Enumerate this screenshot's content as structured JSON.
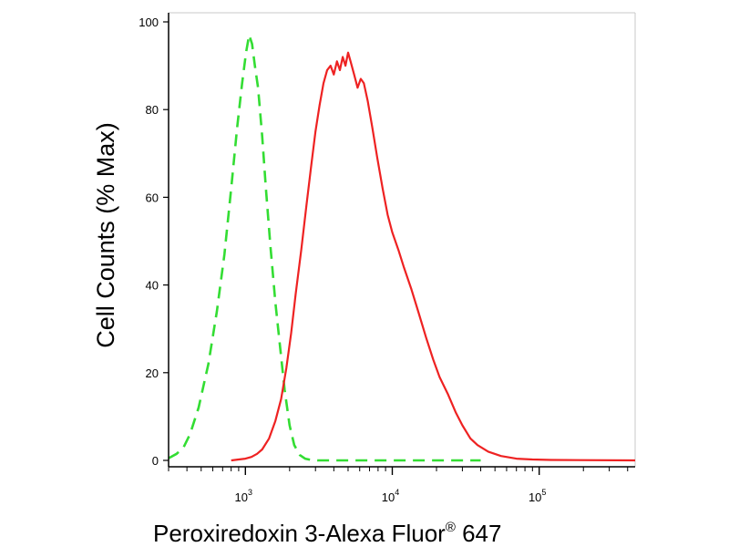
{
  "chart_data": {
    "type": "line",
    "xlabel": "Peroxiredoxin 3-Alexa Fluor",
    "xlabel_superscript": "®",
    "xlabel_suffix": " 647",
    "ylabel": "Cell Counts (% Max)",
    "x_scale": "log",
    "xlim": [
      300,
      450000
    ],
    "ylim": [
      0,
      100
    ],
    "grid": false,
    "yticks": [
      0,
      20,
      40,
      60,
      80,
      100
    ],
    "ytick_labels": [
      "0",
      "20",
      "40",
      "60",
      "80",
      "100"
    ],
    "xticks": [
      1000,
      10000,
      100000
    ],
    "xtick_labels": [
      {
        "base": "10",
        "exp": "3"
      },
      {
        "base": "10",
        "exp": "4"
      },
      {
        "base": "10",
        "exp": "5"
      }
    ],
    "series": [
      {
        "color": "#33dd33",
        "style": "dashed",
        "x": [
          300,
          340,
          380,
          420,
          480,
          560,
          640,
          720,
          800,
          880,
          950,
          1010,
          1060,
          1110,
          1160,
          1220,
          1300,
          1380,
          1480,
          1600,
          1720,
          1850,
          2000,
          2150,
          2350,
          2550,
          2800,
          3100,
          3500,
          4500,
          6000,
          10000,
          20000,
          40000
        ],
        "y": [
          0.5,
          1.5,
          3,
          6,
          12,
          22,
          34,
          47,
          62,
          76,
          86,
          93,
          97,
          95,
          90,
          85,
          74,
          62,
          49,
          36,
          26,
          16,
          8,
          3.5,
          1.2,
          0.4,
          0.1,
          0,
          0,
          0,
          0,
          0,
          0,
          0
        ]
      },
      {
        "color": "#ee2222",
        "style": "solid",
        "x": [
          800,
          900,
          1000,
          1100,
          1200,
          1300,
          1450,
          1600,
          1750,
          1900,
          2050,
          2200,
          2400,
          2600,
          2800,
          3000,
          3200,
          3400,
          3600,
          3800,
          4000,
          4200,
          4400,
          4600,
          4800,
          5000,
          5200,
          5500,
          5800,
          6100,
          6400,
          6800,
          7300,
          7900,
          8600,
          9300,
          10000,
          11000,
          12000,
          13500,
          15000,
          17000,
          19000,
          21000,
          24000,
          27000,
          30000,
          34000,
          38000,
          45000,
          55000,
          70000,
          90000,
          120000,
          450000
        ],
        "y": [
          0,
          0.2,
          0.4,
          0.8,
          1.5,
          2.5,
          5,
          9,
          14,
          21,
          29,
          38,
          48,
          58,
          67,
          75,
          81,
          86,
          89,
          90,
          88,
          91,
          89,
          92,
          90,
          93,
          91,
          88,
          85,
          87,
          86,
          82,
          76,
          69,
          62,
          56,
          52,
          48,
          44,
          39,
          34,
          28,
          23,
          19,
          15,
          11,
          8,
          5,
          3.5,
          2,
          1,
          0.4,
          0.2,
          0.1,
          0
        ]
      }
    ]
  }
}
